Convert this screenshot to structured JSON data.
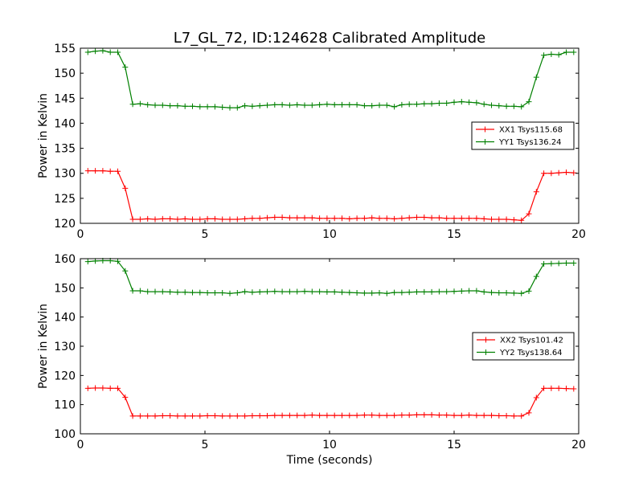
{
  "title": "L7_GL_72, ID:124628 Calibrated Amplitude",
  "chart_data": [
    {
      "type": "line",
      "ylabel": "Power in Kelvin",
      "xlabel": "",
      "xlim": [
        0,
        20
      ],
      "ylim": [
        120,
        155
      ],
      "xticks": [
        "0",
        "5",
        "10",
        "15",
        "20"
      ],
      "yticks": [
        "120",
        "125",
        "130",
        "135",
        "140",
        "145",
        "150",
        "155"
      ],
      "legend_position": "right",
      "x": [
        0.3,
        0.6,
        0.9,
        1.2,
        1.5,
        1.8,
        2.1,
        2.4,
        2.7,
        3.0,
        3.3,
        3.6,
        3.9,
        4.2,
        4.5,
        4.8,
        5.1,
        5.4,
        5.7,
        6.0,
        6.3,
        6.6,
        6.9,
        7.2,
        7.5,
        7.8,
        8.1,
        8.4,
        8.7,
        9.0,
        9.3,
        9.6,
        9.9,
        10.2,
        10.5,
        10.8,
        11.1,
        11.4,
        11.7,
        12.0,
        12.3,
        12.6,
        12.9,
        13.2,
        13.5,
        13.8,
        14.1,
        14.4,
        14.7,
        15.0,
        15.3,
        15.6,
        15.9,
        16.2,
        16.5,
        16.8,
        17.1,
        17.4,
        17.7,
        18.0,
        18.3,
        18.6,
        18.9,
        19.2,
        19.5,
        19.8
      ],
      "series": [
        {
          "name": "XX1 Tsys115.68",
          "color": "#ff0000",
          "values": [
            130.5,
            130.5,
            130.5,
            130.4,
            130.4,
            127.0,
            120.8,
            120.8,
            120.9,
            120.8,
            120.9,
            120.9,
            120.8,
            120.9,
            120.8,
            120.8,
            120.9,
            120.9,
            120.8,
            120.8,
            120.8,
            120.9,
            121.0,
            121.0,
            121.1,
            121.2,
            121.2,
            121.1,
            121.1,
            121.1,
            121.1,
            121.0,
            121.0,
            121.0,
            121.0,
            120.9,
            121.0,
            121.0,
            121.1,
            121.0,
            121.0,
            120.9,
            121.0,
            121.1,
            121.2,
            121.2,
            121.1,
            121.1,
            121.0,
            121.0,
            121.0,
            121.0,
            121.0,
            120.9,
            120.8,
            120.8,
            120.8,
            120.7,
            120.6,
            121.9,
            126.3,
            130.0,
            130.0,
            130.1,
            130.2,
            130.1
          ]
        },
        {
          "name": "YY1 Tsys136.24",
          "color": "#008000",
          "values": [
            154.2,
            154.4,
            154.5,
            154.2,
            154.2,
            151.2,
            143.8,
            143.9,
            143.7,
            143.6,
            143.6,
            143.5,
            143.5,
            143.4,
            143.4,
            143.3,
            143.3,
            143.3,
            143.2,
            143.1,
            143.1,
            143.5,
            143.4,
            143.5,
            143.6,
            143.7,
            143.7,
            143.6,
            143.7,
            143.6,
            143.6,
            143.7,
            143.8,
            143.7,
            143.7,
            143.7,
            143.7,
            143.5,
            143.5,
            143.6,
            143.6,
            143.3,
            143.7,
            143.8,
            143.8,
            143.9,
            143.9,
            144.0,
            144.0,
            144.2,
            144.3,
            144.2,
            144.1,
            143.8,
            143.6,
            143.5,
            143.4,
            143.4,
            143.3,
            144.3,
            149.2,
            153.6,
            153.8,
            153.7,
            154.2,
            154.2
          ]
        }
      ]
    },
    {
      "type": "line",
      "ylabel": "Power in Kelvin",
      "xlabel": "Time (seconds)",
      "xlim": [
        0,
        20
      ],
      "ylim": [
        100,
        160
      ],
      "xticks": [
        "0",
        "5",
        "10",
        "15",
        "20"
      ],
      "yticks": [
        "100",
        "110",
        "120",
        "130",
        "140",
        "150",
        "160"
      ],
      "legend_position": "right",
      "x": [
        0.3,
        0.6,
        0.9,
        1.2,
        1.5,
        1.8,
        2.1,
        2.4,
        2.7,
        3.0,
        3.3,
        3.6,
        3.9,
        4.2,
        4.5,
        4.8,
        5.1,
        5.4,
        5.7,
        6.0,
        6.3,
        6.6,
        6.9,
        7.2,
        7.5,
        7.8,
        8.1,
        8.4,
        8.7,
        9.0,
        9.3,
        9.6,
        9.9,
        10.2,
        10.5,
        10.8,
        11.1,
        11.4,
        11.7,
        12.0,
        12.3,
        12.6,
        12.9,
        13.2,
        13.5,
        13.8,
        14.1,
        14.4,
        14.7,
        15.0,
        15.3,
        15.6,
        15.9,
        16.2,
        16.5,
        16.8,
        17.1,
        17.4,
        17.7,
        18.0,
        18.3,
        18.6,
        18.9,
        19.2,
        19.5,
        19.8
      ],
      "series": [
        {
          "name": "XX2 Tsys101.42",
          "color": "#ff0000",
          "values": [
            115.6,
            115.7,
            115.7,
            115.6,
            115.6,
            112.5,
            106.1,
            106.1,
            106.1,
            106.1,
            106.2,
            106.2,
            106.1,
            106.1,
            106.1,
            106.1,
            106.2,
            106.2,
            106.1,
            106.1,
            106.1,
            106.1,
            106.2,
            106.2,
            106.2,
            106.3,
            106.3,
            106.3,
            106.3,
            106.3,
            106.4,
            106.3,
            106.3,
            106.3,
            106.3,
            106.3,
            106.3,
            106.4,
            106.4,
            106.3,
            106.3,
            106.3,
            106.4,
            106.4,
            106.5,
            106.5,
            106.5,
            106.4,
            106.4,
            106.3,
            106.3,
            106.4,
            106.3,
            106.3,
            106.3,
            106.2,
            106.2,
            106.1,
            106.1,
            107.2,
            112.4,
            115.6,
            115.6,
            115.6,
            115.5,
            115.4
          ]
        },
        {
          "name": "YY2 Tsys138.64",
          "color": "#008000",
          "values": [
            159.0,
            159.2,
            159.3,
            159.3,
            159.1,
            155.8,
            149.0,
            149.0,
            148.7,
            148.7,
            148.7,
            148.6,
            148.5,
            148.5,
            148.4,
            148.4,
            148.3,
            148.3,
            148.3,
            148.1,
            148.3,
            148.7,
            148.5,
            148.6,
            148.7,
            148.8,
            148.7,
            148.7,
            148.7,
            148.8,
            148.7,
            148.7,
            148.6,
            148.6,
            148.5,
            148.4,
            148.3,
            148.2,
            148.2,
            148.3,
            148.1,
            148.4,
            148.4,
            148.5,
            148.6,
            148.6,
            148.6,
            148.7,
            148.7,
            148.8,
            148.9,
            149.0,
            149.0,
            148.6,
            148.4,
            148.3,
            148.3,
            148.2,
            148.1,
            148.9,
            153.9,
            158.2,
            158.3,
            158.4,
            158.5,
            158.5
          ]
        }
      ]
    }
  ]
}
